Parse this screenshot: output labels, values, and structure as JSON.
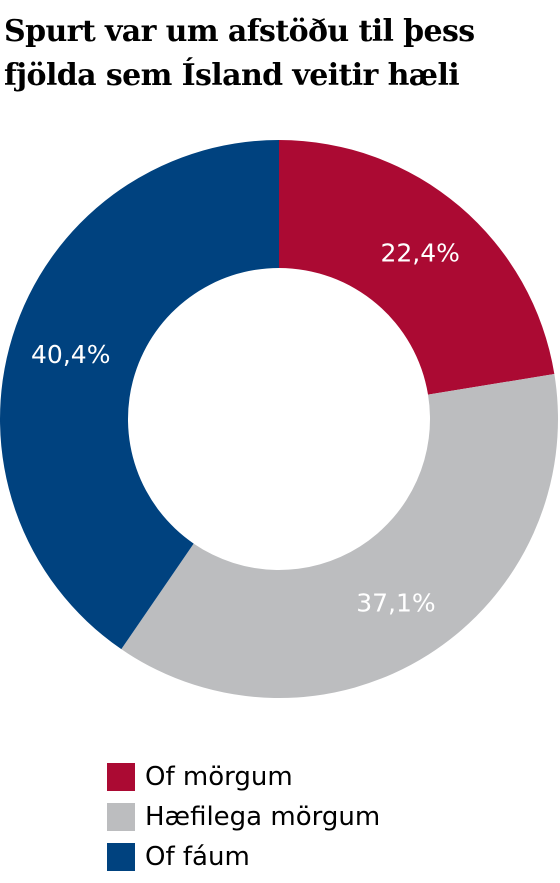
{
  "title_lines": [
    "Spurt var um afstöðu til þess",
    "fjölda sem Ísland veitir hæli"
  ],
  "chart_data": {
    "type": "pie",
    "donut": true,
    "title": "Spurt var um afstöðu til þess fjölda sem Ísland veitir hæli",
    "start": "top, clockwise",
    "legend_position": "bottom-left",
    "slices": [
      {
        "label": "Of mörgum",
        "value": 22.4,
        "display": "22,4%",
        "color": "#ab0a33"
      },
      {
        "label": "Hæfilega mörgum",
        "value": 37.1,
        "display": "37,1%",
        "color": "#bcbdbf"
      },
      {
        "label": "Of fáum",
        "value": 40.4,
        "display": "40,4%",
        "color": "#00427f"
      }
    ]
  }
}
